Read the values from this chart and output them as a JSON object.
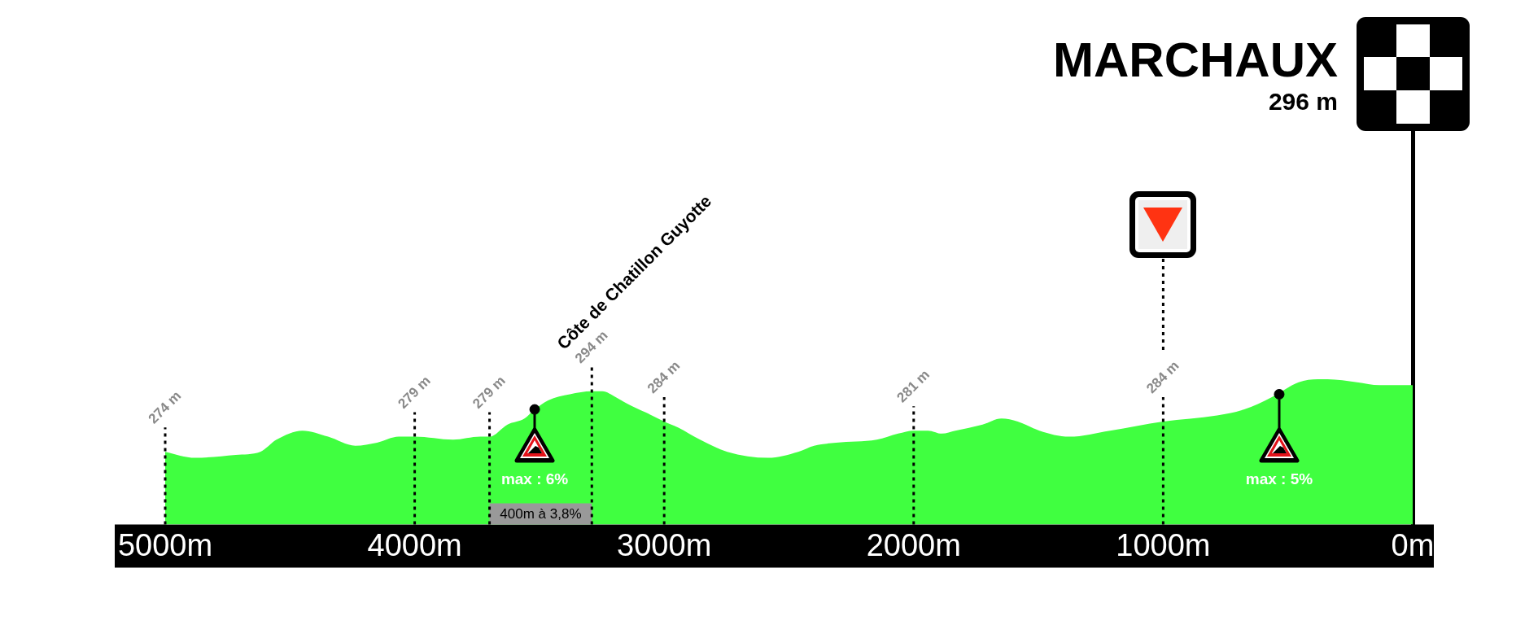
{
  "chart_data": {
    "type": "area",
    "title": "MARCHAUX",
    "subtitle": "296 m",
    "x": [
      5000,
      4880,
      4717,
      4619,
      4554,
      4450,
      4347,
      4238,
      4151,
      4064,
      4000,
      3846,
      3737,
      3700,
      3628,
      3560,
      3519,
      3465,
      3378,
      3290,
      3248,
      3193,
      3150,
      3074,
      3000,
      2943,
      2856,
      2747,
      2584,
      2463,
      2399,
      2311,
      2148,
      2062,
      2000,
      1942,
      1887,
      1833,
      1724,
      1648,
      1583,
      1496,
      1377,
      1213,
      1000,
      784,
      675,
      566,
      457,
      380,
      341,
      223,
      133,
      0
    ],
    "xlim": [
      5000,
      0
    ],
    "xticks": [
      {
        "value": 5000,
        "label": "5000m"
      },
      {
        "value": 4000,
        "label": "4000m"
      },
      {
        "value": 3000,
        "label": "3000m"
      },
      {
        "value": 2000,
        "label": "2000m"
      },
      {
        "value": 1000,
        "label": "1000m"
      },
      {
        "value": 0,
        "label": "0m"
      }
    ],
    "ylim": [
      250,
      380
    ],
    "tick_labels": "x",
    "series": [
      {
        "color": "#40ff40",
        "values": [
          274,
          272,
          273,
          274,
          278,
          281,
          279,
          276,
          277,
          279,
          279,
          278,
          279,
          279,
          283,
          285,
          288,
          291,
          293,
          294,
          294,
          292,
          290,
          287,
          284,
          282,
          278,
          274,
          272,
          274,
          276,
          277,
          278,
          280,
          281,
          281,
          280,
          281,
          283,
          285,
          284,
          281,
          279,
          281,
          284,
          286,
          288,
          292,
          297,
          298,
          298,
          297,
          296,
          296
        ],
        "value_labels": [
          "274 m",
          null,
          null,
          null,
          null,
          null,
          null,
          null,
          null,
          null,
          "279 m",
          null,
          null,
          "279 m",
          null,
          null,
          null,
          null,
          null,
          "294 m",
          null,
          null,
          null,
          null,
          "284 m",
          null,
          null,
          null,
          null,
          null,
          null,
          null,
          null,
          null,
          "281 m",
          null,
          null,
          null,
          null,
          null,
          null,
          null,
          null,
          null,
          "284 m",
          null,
          null,
          null,
          null,
          null,
          null,
          null,
          null,
          null
        ]
      },
      {
        "type": "scatter",
        "color": "#000000",
        "marker": "circle",
        "x": [
          3519,
          535
        ],
        "values": [
          288,
          293
        ]
      }
    ],
    "annotations": [
      {
        "text": "Côte de Chatillon Guyotte",
        "x": 3290,
        "y": 294
      },
      "max : 6%",
      "max : 5%"
    ],
    "bands": [
      {
        "axis": "x",
        "from": 3700,
        "to": 3290,
        "label": "400m à 3,8%",
        "color": "#999999"
      }
    ],
    "ref_lines": [
      {
        "axis": "x",
        "value": 1000,
        "color": "#000000",
        "line_style": "dotted"
      }
    ],
    "grid": false,
    "legend": false
  }
}
